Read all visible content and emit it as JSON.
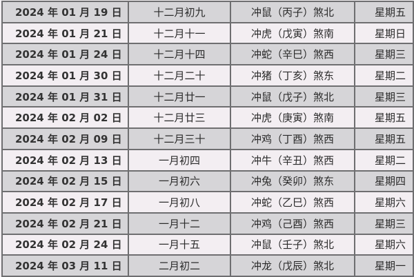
{
  "rows": [
    {
      "date": "2024 年 01 月 19 日",
      "lunar": "十二月初九",
      "chong": "冲鼠（丙子）煞北",
      "weekday": "星期五"
    },
    {
      "date": "2024 年 01 月 21 日",
      "lunar": "十二月十一",
      "chong": "冲虎（戊寅）煞南",
      "weekday": "星期日"
    },
    {
      "date": "2024 年 01 月 24 日",
      "lunar": "十二月十四",
      "chong": "冲蛇（辛巳）煞西",
      "weekday": "星期三"
    },
    {
      "date": "2024 年 01 月 30 日",
      "lunar": "十二月二十",
      "chong": "冲猪（丁亥）煞东",
      "weekday": "星期二"
    },
    {
      "date": "2024 年 01 月 31 日",
      "lunar": "十二月廿一",
      "chong": "冲鼠（戊子）煞北",
      "weekday": "星期三"
    },
    {
      "date": "2024 年 02 月 02 日",
      "lunar": "十二月廿三",
      "chong": "冲虎（庚寅）煞南",
      "weekday": "星期五"
    },
    {
      "date": "2024 年 02 月 09 日",
      "lunar": "十二月三十",
      "chong": "冲鸡（丁酉）煞西",
      "weekday": "星期五"
    },
    {
      "date": "2024 年 02 月 13 日",
      "lunar": "一月初四",
      "chong": "冲牛（辛丑）煞西",
      "weekday": "星期二"
    },
    {
      "date": "2024 年 02 月 15 日",
      "lunar": "一月初六",
      "chong": "冲兔（癸卯）煞东",
      "weekday": "星期四"
    },
    {
      "date": "2024 年 02 月 17 日",
      "lunar": "一月初八",
      "chong": "冲蛇（乙巳）煞西",
      "weekday": "星期六"
    },
    {
      "date": "2024 年 02 月 21 日",
      "lunar": "一月十二",
      "chong": "冲鸡（己酉）煞西",
      "weekday": "星期三"
    },
    {
      "date": "2024 年 02 月 24 日",
      "lunar": "一月十五",
      "chong": "冲鼠（壬子）煞北",
      "weekday": "星期六"
    },
    {
      "date": "2024 年 03 月 11 日",
      "lunar": "二月初二",
      "chong": "冲龙（戊辰）煞北",
      "weekday": "星期一"
    }
  ]
}
